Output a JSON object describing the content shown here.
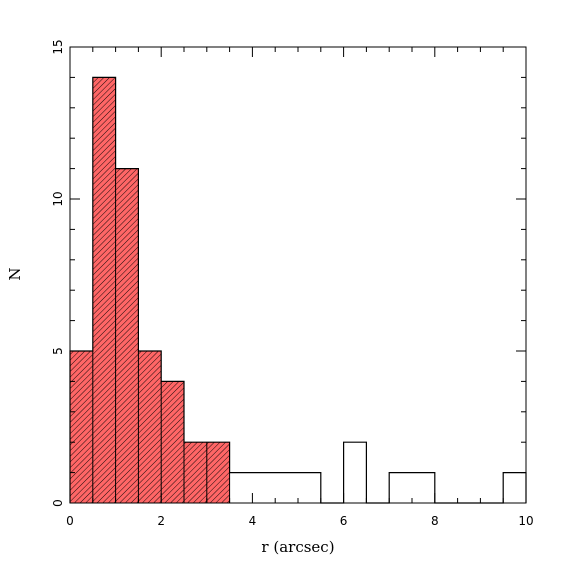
{
  "chart_data": {
    "type": "bar",
    "xlabel": "r (arcsec)",
    "ylabel": "N",
    "xlim": [
      0,
      10
    ],
    "ylim": [
      0,
      15
    ],
    "x_ticks": [
      0,
      2,
      4,
      6,
      8,
      10
    ],
    "y_ticks": [
      0,
      5,
      10,
      15
    ],
    "x_tick_labels": [
      "0",
      "2",
      "4",
      "6",
      "8",
      "10"
    ],
    "y_tick_labels": [
      "0",
      "5",
      "10",
      "15"
    ],
    "bin_width": 0.5,
    "bin_edges": [
      0,
      0.5,
      1.0,
      1.5,
      2.0,
      2.5,
      3.0,
      3.5,
      4.0,
      4.5,
      5.0,
      5.5,
      6.0,
      6.5,
      7.0,
      7.5,
      8.0,
      8.5,
      9.0,
      9.5,
      10.0
    ],
    "series": [
      {
        "values": [
          5,
          14,
          11,
          5,
          4,
          2,
          2,
          1,
          1,
          1,
          1,
          0,
          2,
          0,
          1,
          1,
          0,
          0,
          0,
          1
        ]
      }
    ],
    "highlight_range": [
      0,
      3.5
    ],
    "highlight_color": "#ff6666",
    "grid": false
  }
}
